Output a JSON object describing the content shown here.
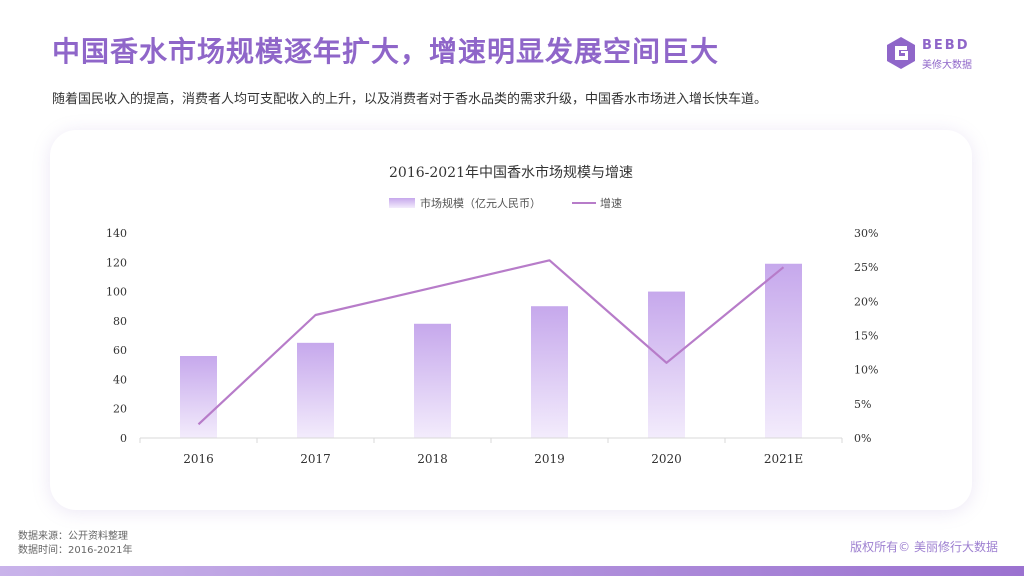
{
  "page": {
    "title": "中国香水市场规模逐年扩大，增速明显发展空间巨大",
    "subtitle": "随着国民收入的提高，消费者人均可支配收入的上升，以及消费者对于香水品类的需求升级，中国香水市场进入增长快车道。",
    "logo": {
      "brand": "BEBD",
      "brand_sub": "美修大数据"
    },
    "footer": {
      "source": "数据来源：公开资料整理",
      "time": "数据时间：2016-2021年",
      "copyright": "版权所有© 美丽修行大数据"
    },
    "colors": {
      "accent": "#8f66c9",
      "bar_top": "#c6a8ec",
      "bar_bottom": "#f1e9fb",
      "line": "#b77cc9"
    }
  },
  "chart_data": {
    "type": "bar",
    "title": "2016-2021年中国香水市场规模与增速",
    "categories": [
      "2016",
      "2017",
      "2018",
      "2019",
      "2020",
      "2021E"
    ],
    "series": [
      {
        "name": "市场规模（亿元人民币）",
        "type": "bar",
        "axis": "left",
        "values": [
          56,
          65,
          78,
          90,
          100,
          119
        ]
      },
      {
        "name": "增速",
        "type": "line",
        "axis": "right",
        "values": [
          0.02,
          0.18,
          0.22,
          0.26,
          0.11,
          0.25
        ]
      }
    ],
    "y_left": {
      "min": 0,
      "max": 140,
      "ticks": [
        "0",
        "20",
        "40",
        "60",
        "80",
        "100",
        "120",
        "140"
      ]
    },
    "y_right": {
      "min": 0,
      "max": 0.3,
      "ticks": [
        "0%",
        "5%",
        "10%",
        "15%",
        "20%",
        "25%",
        "30%"
      ]
    },
    "grid": false,
    "legend": "top-center"
  }
}
